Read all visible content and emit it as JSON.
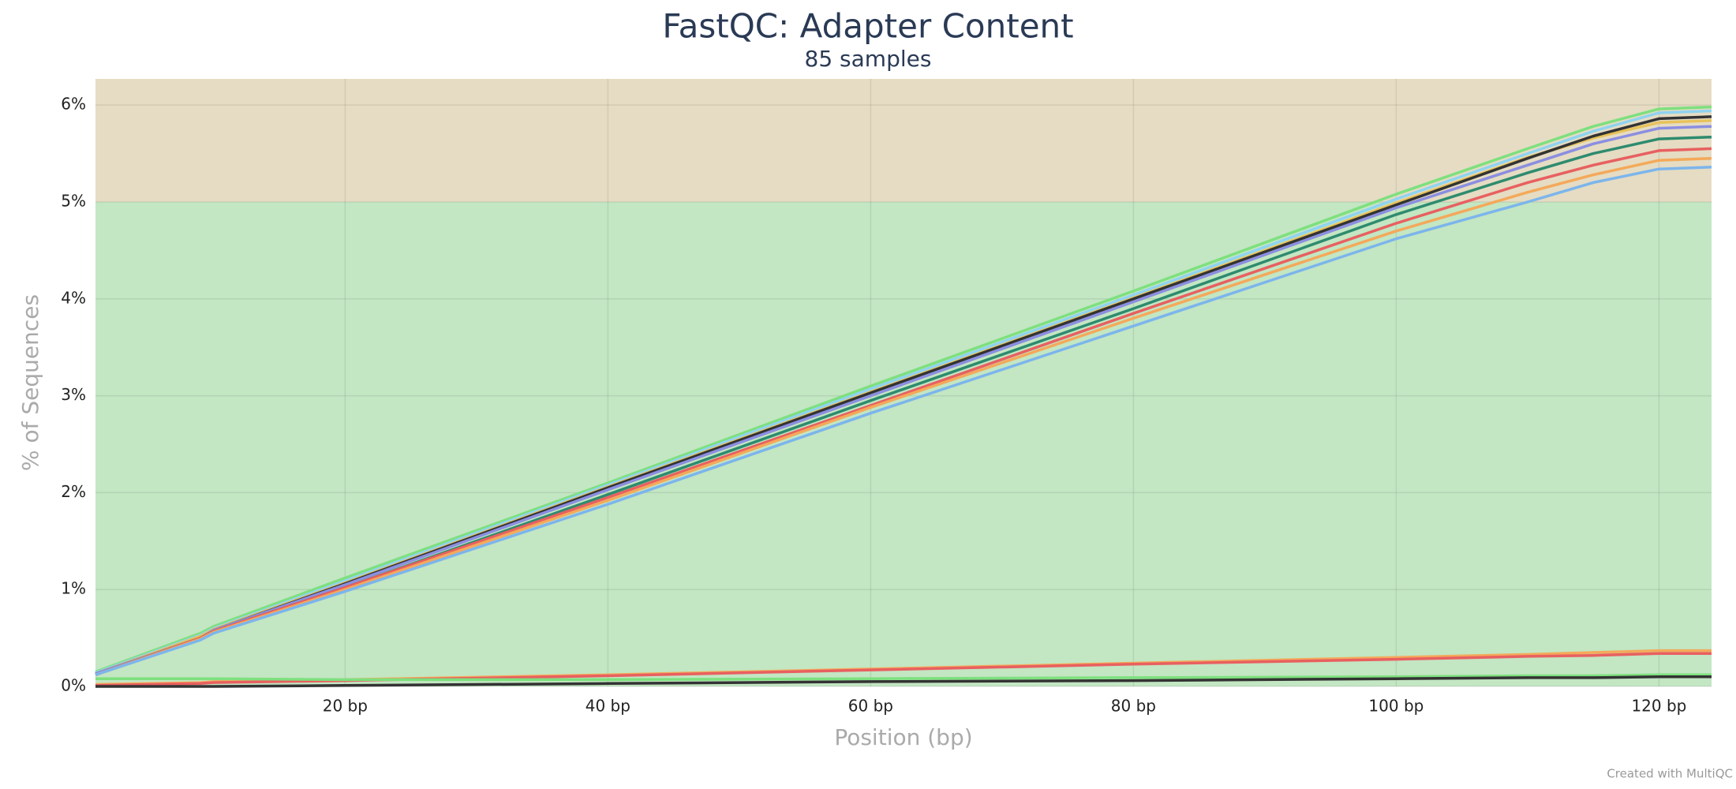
{
  "chart_data": {
    "type": "line",
    "title": "FastQC: Adapter Content",
    "subtitle": "85 samples",
    "x_label": "Position (bp)",
    "y_label": "% of Sequences",
    "credit": "Created with MultiQC",
    "x": [
      1,
      9,
      10,
      20,
      40,
      60,
      80,
      100,
      110,
      115,
      120,
      124
    ],
    "xlim": [
      1,
      124
    ],
    "ylim": [
      0,
      6.27
    ],
    "xticks": [
      {
        "value": 20,
        "label": "20 bp"
      },
      {
        "value": 40,
        "label": "40 bp"
      },
      {
        "value": 60,
        "label": "60 bp"
      },
      {
        "value": 80,
        "label": "80 bp"
      },
      {
        "value": 100,
        "label": "100 bp"
      },
      {
        "value": 120,
        "label": "120 bp"
      }
    ],
    "yticks": [
      {
        "value": 0,
        "label": "0%"
      },
      {
        "value": 1,
        "label": "1%"
      },
      {
        "value": 2,
        "label": "2%"
      },
      {
        "value": 3,
        "label": "3%"
      },
      {
        "value": 4,
        "label": "4%"
      },
      {
        "value": 5,
        "label": "5%"
      },
      {
        "value": 6,
        "label": "6%"
      }
    ],
    "grid": true,
    "bands": [
      {
        "from": 0,
        "to": 5,
        "color": "#c3e6c3"
      },
      {
        "from": 5,
        "to": 6.27,
        "color": "#e5dcc3"
      }
    ],
    "series": [
      {
        "color": "#7ee07e",
        "values": [
          0.15,
          0.55,
          0.62,
          1.12,
          2.1,
          3.1,
          4.08,
          5.08,
          5.55,
          5.78,
          5.96,
          5.98
        ]
      },
      {
        "color": "#8fd3f0",
        "values": [
          0.14,
          0.53,
          0.6,
          1.09,
          2.08,
          3.07,
          4.04,
          5.03,
          5.5,
          5.73,
          5.92,
          5.94
        ]
      },
      {
        "color": "#e8c25a",
        "values": [
          0.13,
          0.52,
          0.59,
          1.07,
          2.06,
          3.04,
          4.01,
          4.99,
          5.46,
          5.66,
          5.82,
          5.84
        ]
      },
      {
        "color": "#333333",
        "values": [
          0.13,
          0.5,
          0.58,
          1.06,
          2.05,
          3.03,
          4.0,
          4.97,
          5.45,
          5.68,
          5.86,
          5.88
        ]
      },
      {
        "color": "#8b8ee0",
        "values": [
          0.13,
          0.5,
          0.58,
          1.05,
          2.03,
          3.0,
          3.97,
          4.94,
          5.38,
          5.6,
          5.76,
          5.78
        ]
      },
      {
        "color": "#2e8b6e",
        "values": [
          0.12,
          0.5,
          0.57,
          1.02,
          1.98,
          2.95,
          3.9,
          4.87,
          5.3,
          5.5,
          5.65,
          5.67
        ]
      },
      {
        "color": "#e86060",
        "values": [
          0.12,
          0.5,
          0.57,
          1.02,
          1.95,
          2.9,
          3.85,
          4.78,
          5.2,
          5.38,
          5.53,
          5.55
        ]
      },
      {
        "color": "#f4a95a",
        "values": [
          0.12,
          0.49,
          0.56,
          1.0,
          1.92,
          2.88,
          3.8,
          4.7,
          5.1,
          5.28,
          5.43,
          5.45
        ]
      },
      {
        "color": "#7cb5ec",
        "values": [
          0.12,
          0.48,
          0.55,
          0.98,
          1.88,
          2.82,
          3.72,
          4.62,
          5.0,
          5.2,
          5.34,
          5.36
        ]
      },
      {
        "color": "#f4a95a",
        "values": [
          0.02,
          0.04,
          0.05,
          0.07,
          0.12,
          0.18,
          0.24,
          0.3,
          0.33,
          0.35,
          0.37,
          0.37
        ]
      },
      {
        "color": "#e86060",
        "values": [
          0.01,
          0.03,
          0.04,
          0.06,
          0.11,
          0.17,
          0.23,
          0.28,
          0.31,
          0.32,
          0.34,
          0.34
        ]
      },
      {
        "color": "#7ee07e",
        "values": [
          0.08,
          0.08,
          0.08,
          0.07,
          0.07,
          0.08,
          0.09,
          0.1,
          0.11,
          0.11,
          0.12,
          0.12
        ]
      },
      {
        "color": "#333333",
        "values": [
          0,
          0,
          0,
          0.01,
          0.03,
          0.05,
          0.06,
          0.08,
          0.09,
          0.09,
          0.1,
          0.1
        ]
      }
    ]
  }
}
